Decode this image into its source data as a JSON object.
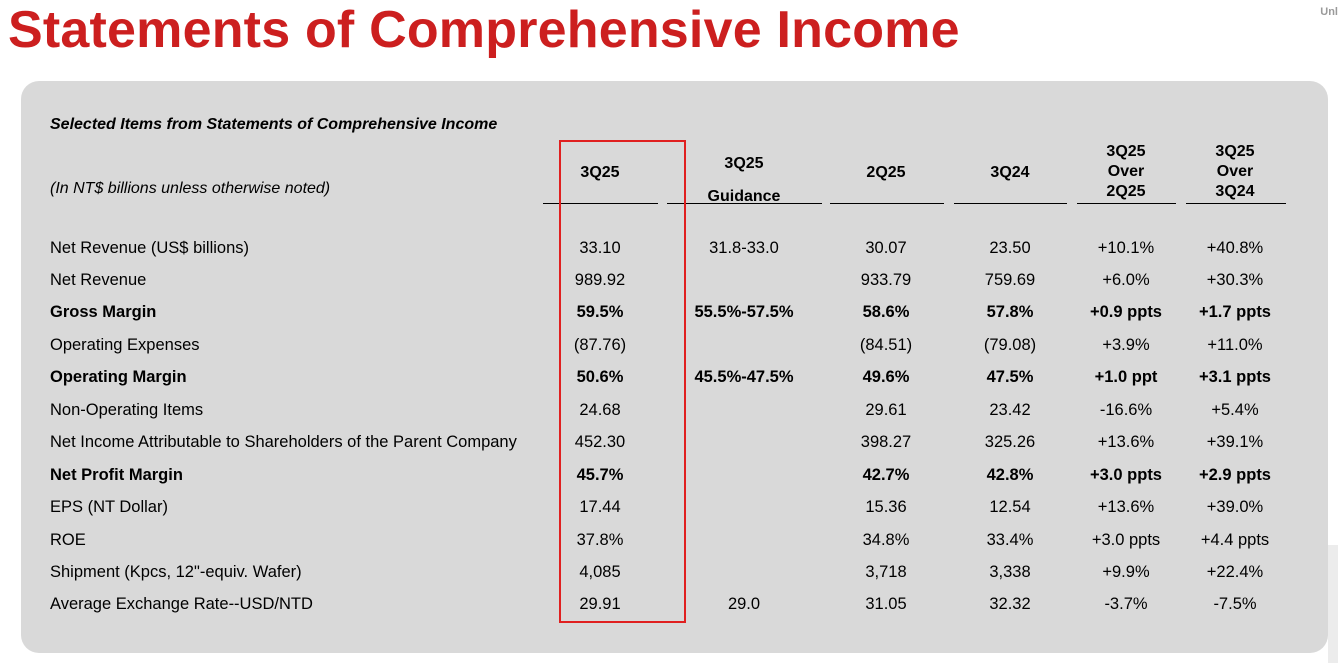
{
  "page_title": "Statements of Comprehensive Income",
  "corner_label": "Unl",
  "section_title": "Selected Items from Statements of Comprehensive Income",
  "units_note": "(In NT$ billions unless otherwise noted)",
  "columns": [
    {
      "lines": [
        "3Q25"
      ]
    },
    {
      "lines": [
        "3Q25",
        "Guidance"
      ]
    },
    {
      "lines": [
        "2Q25"
      ]
    },
    {
      "lines": [
        "3Q24"
      ]
    },
    {
      "lines": [
        "3Q25",
        "Over",
        "2Q25"
      ]
    },
    {
      "lines": [
        "3Q25",
        "Over",
        "3Q24"
      ]
    }
  ],
  "rows": [
    {
      "label": "Net Revenue (US$ billions)",
      "bold": false,
      "values": [
        "33.10",
        "31.8-33.0",
        "30.07",
        "23.50",
        "+10.1%",
        "+40.8%"
      ]
    },
    {
      "label": "Net Revenue",
      "bold": false,
      "values": [
        "989.92",
        "",
        "933.79",
        "759.69",
        "+6.0%",
        "+30.3%"
      ]
    },
    {
      "label": "Gross Margin",
      "bold": true,
      "values": [
        "59.5%",
        "55.5%-57.5%",
        "58.6%",
        "57.8%",
        "+0.9 ppts",
        "+1.7 ppts"
      ]
    },
    {
      "label": "Operating Expenses",
      "bold": false,
      "values": [
        "(87.76)",
        "",
        "(84.51)",
        "(79.08)",
        "+3.9%",
        "+11.0%"
      ]
    },
    {
      "label": "Operating Margin",
      "bold": true,
      "values": [
        "50.6%",
        "45.5%-47.5%",
        "49.6%",
        "47.5%",
        "+1.0 ppt",
        "+3.1 ppts"
      ]
    },
    {
      "label": "Non-Operating Items",
      "bold": false,
      "values": [
        "24.68",
        "",
        "29.61",
        "23.42",
        "-16.6%",
        "+5.4%"
      ]
    },
    {
      "label": "Net Income Attributable to Shareholders of the Parent Company",
      "bold": false,
      "values": [
        "452.30",
        "",
        "398.27",
        "325.26",
        "+13.6%",
        "+39.1%"
      ]
    },
    {
      "label": "Net Profit Margin",
      "bold": true,
      "values": [
        "45.7%",
        "",
        "42.7%",
        "42.8%",
        "+3.0 ppts",
        "+2.9 ppts"
      ]
    },
    {
      "label": "EPS (NT Dollar)",
      "bold": false,
      "values": [
        "17.44",
        "",
        "15.36",
        "12.54",
        "+13.6%",
        "+39.0%"
      ]
    },
    {
      "label": "ROE",
      "bold": false,
      "values": [
        "37.8%",
        "",
        "34.8%",
        "33.4%",
        "+3.0 ppts",
        "+4.4 ppts"
      ]
    },
    {
      "label": "Shipment (Kpcs, 12\"-equiv. Wafer)",
      "bold": false,
      "values": [
        "4,085",
        "",
        "3,718",
        "3,338",
        "+9.9%",
        "+22.4%"
      ]
    },
    {
      "label": "Average Exchange Rate--USD/NTD",
      "bold": false,
      "values": [
        "29.91",
        "29.0",
        "31.05",
        "32.32",
        "-3.7%",
        "-7.5%"
      ]
    }
  ],
  "colors": {
    "title": "#cc1f1f",
    "panel": "#d9d9d9",
    "highlight": "#e02020"
  }
}
